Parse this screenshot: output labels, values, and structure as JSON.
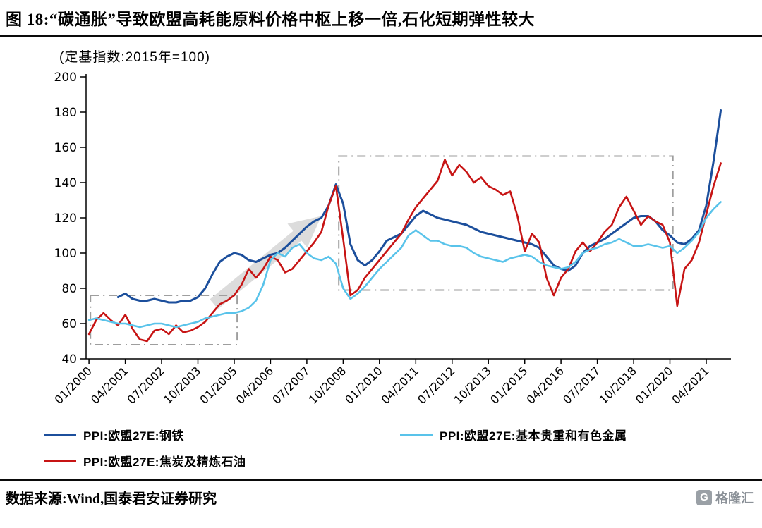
{
  "header": {
    "title": "图 18:“碳通胀”导致欧盟高耗能原料价格中枢上移一倍,石化短期弹性较大"
  },
  "chart": {
    "subtitle": "(定基指数:2015年=100)"
  },
  "legend": {
    "items": [
      {
        "label": "PPI:欧盟27E:钢铁",
        "color": "#1c4f9c"
      },
      {
        "label": "PPI:欧盟27E:焦炭及精炼石油",
        "color": "#c71414"
      },
      {
        "label": "PPI:欧盟27E:基本贵重和有色金属",
        "color": "#59c3ea"
      }
    ]
  },
  "footer": {
    "source": "数据来源:Wind,国泰君安证券研究",
    "logo_letter": "G",
    "logo_text": "格隆汇"
  },
  "chart_data": {
    "type": "line",
    "title": "“碳通胀”导致欧盟高耗能原料价格中枢上移一倍,石化短期弹性较大",
    "subtitle": "(定基指数:2015年=100)",
    "xlabel": "",
    "ylabel": "",
    "grid": false,
    "legend_position": "bottom",
    "x_unit": "decimal_year_quarterly",
    "x_start": 2000.0,
    "x_step": 0.25,
    "x_range": [
      1999.9,
      2022.1
    ],
    "ylim": [
      40,
      200
    ],
    "y_ticks": [
      40,
      60,
      80,
      100,
      120,
      140,
      160,
      180,
      200
    ],
    "x_tick_values": [
      2000.0,
      2001.25,
      2002.5,
      2003.75,
      2005.0,
      2006.25,
      2007.5,
      2008.75,
      2010.0,
      2011.25,
      2012.5,
      2013.75,
      2015.0,
      2016.25,
      2017.5,
      2018.75,
      2020.0,
      2021.25
    ],
    "x_tick_labels": [
      "01/2000",
      "04/2001",
      "07/2002",
      "10/2003",
      "01/2005",
      "04/2006",
      "07/2007",
      "10/2008",
      "01/2010",
      "04/2011",
      "07/2012",
      "10/2013",
      "01/2015",
      "04/2016",
      "07/2017",
      "10/2018",
      "01/2020",
      "04/2021"
    ],
    "series": [
      {
        "name": "PPI:欧盟27E:钢铁",
        "color": "#1c4f9c",
        "width": 3,
        "values": [
          null,
          null,
          null,
          null,
          75,
          77,
          74,
          73,
          73,
          74,
          73,
          72,
          72,
          73,
          73,
          75,
          80,
          88,
          95,
          98,
          100,
          99,
          96,
          95,
          97,
          99,
          100,
          103,
          107,
          111,
          115,
          118,
          120,
          127,
          139,
          128,
          105,
          96,
          93,
          96,
          101,
          107,
          109,
          111,
          116,
          121,
          124,
          122,
          120,
          119,
          118,
          117,
          116,
          114,
          112,
          111,
          110,
          109,
          108,
          107,
          106,
          105,
          103,
          98,
          93,
          91,
          90,
          93,
          100,
          104,
          106,
          108,
          111,
          114,
          117,
          120,
          121,
          121,
          118,
          113,
          110,
          106,
          105,
          108,
          113,
          127,
          152,
          181
        ]
      },
      {
        "name": "PPI:欧盟27E:焦炭及精炼石油",
        "color": "#c71414",
        "width": 2.6,
        "values": [
          54,
          62,
          66,
          62,
          59,
          65,
          57,
          51,
          50,
          56,
          57,
          54,
          59,
          55,
          56,
          58,
          61,
          66,
          71,
          73,
          76,
          82,
          91,
          86,
          91,
          98,
          96,
          89,
          91,
          96,
          101,
          106,
          112,
          127,
          138,
          108,
          76,
          79,
          86,
          91,
          96,
          101,
          106,
          111,
          119,
          126,
          131,
          136,
          141,
          153,
          144,
          150,
          146,
          140,
          143,
          138,
          136,
          133,
          135,
          121,
          101,
          111,
          106,
          86,
          76,
          86,
          91,
          101,
          106,
          101,
          106,
          112,
          116,
          126,
          132,
          124,
          116,
          121,
          118,
          116,
          106,
          70,
          91,
          96,
          106,
          122,
          138,
          151
        ]
      },
      {
        "name": "PPI:欧盟27E:基本贵重和有色金属",
        "color": "#59c3ea",
        "width": 2.6,
        "values": [
          62,
          63,
          62,
          61,
          60,
          60,
          59,
          58,
          59,
          60,
          60,
          59,
          58,
          59,
          60,
          61,
          63,
          64,
          65,
          66,
          66,
          67,
          69,
          73,
          82,
          96,
          100,
          98,
          103,
          105,
          100,
          97,
          96,
          98,
          94,
          80,
          74,
          77,
          81,
          86,
          91,
          95,
          99,
          103,
          110,
          113,
          110,
          107,
          107,
          105,
          104,
          104,
          103,
          100,
          98,
          97,
          96,
          95,
          97,
          98,
          99,
          98,
          95,
          93,
          92,
          91,
          92,
          95,
          100,
          102,
          103,
          105,
          106,
          108,
          106,
          104,
          104,
          105,
          104,
          103,
          104,
          100,
          103,
          107,
          112,
          120,
          125,
          129
        ]
      }
    ],
    "annotations": {
      "boxes": [
        {
          "x1": 2000.05,
          "y1": 48,
          "x2": 2005.1,
          "y2": 76
        },
        {
          "x1": 2008.6,
          "y1": 79,
          "x2": 2020.1,
          "y2": 155
        }
      ],
      "arrow": {
        "x1": 2004.3,
        "y1": 71,
        "x2": 2008.0,
        "y2": 121
      },
      "style": {
        "box_color": "#9e9e9e",
        "arrow_color": "#dcdcdc"
      }
    }
  }
}
